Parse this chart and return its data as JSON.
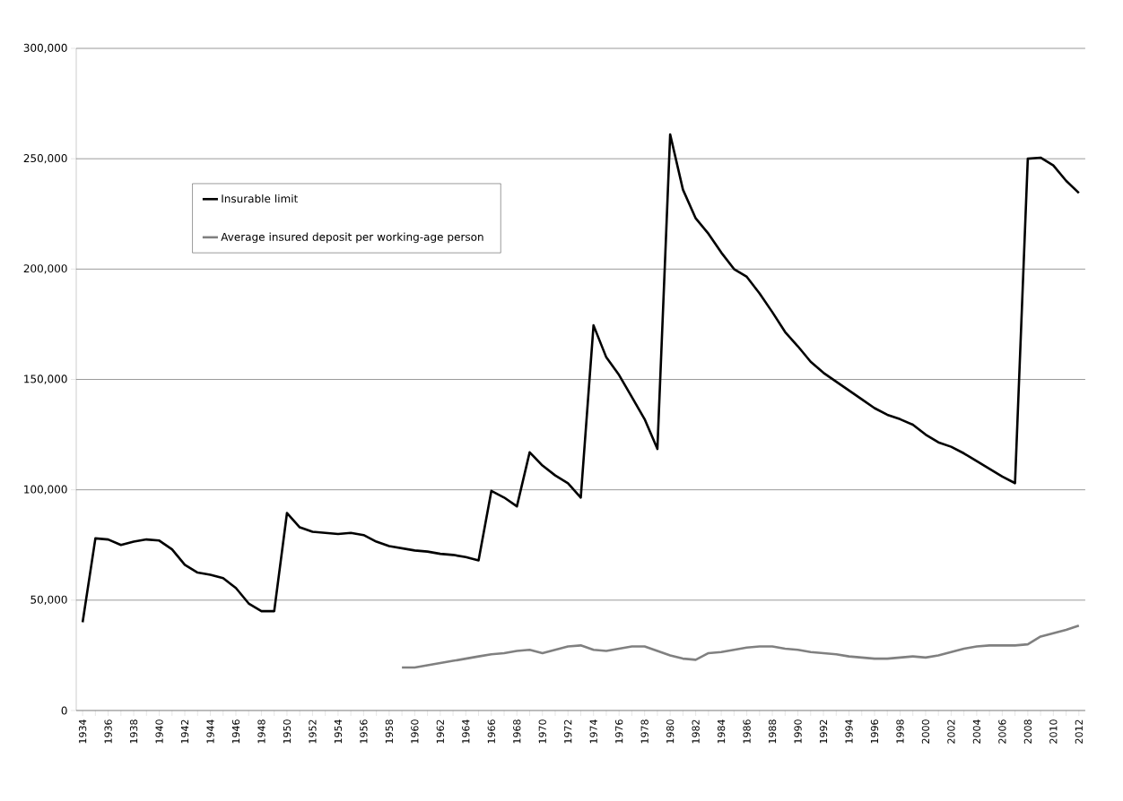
{
  "chart_data": {
    "type": "line",
    "categories": [
      "1934",
      null,
      "1936",
      null,
      "1938",
      null,
      "1940",
      null,
      "1942",
      null,
      "1944",
      null,
      "1946",
      null,
      "1948",
      null,
      "1950",
      null,
      "1952",
      null,
      "1954",
      null,
      "1956",
      null,
      "1958",
      null,
      "1960",
      null,
      "1962",
      null,
      "1964",
      null,
      "1966",
      null,
      "1968",
      null,
      "1970",
      null,
      "1972",
      null,
      "1974",
      null,
      "1976",
      null,
      "1978",
      null,
      "1980",
      null,
      "1982",
      null,
      "1984",
      null,
      "1986",
      null,
      "1988",
      null,
      "1990",
      null,
      "1992",
      null,
      "1994",
      null,
      "1996",
      null,
      "1998",
      null,
      "2000",
      null,
      "2002",
      null,
      "2004",
      null,
      "2006",
      null,
      "2008",
      null,
      "2010",
      null,
      "2012"
    ],
    "series": [
      {
        "name": "Insurable limit",
        "color": "#000000",
        "values": [
          40000,
          78000,
          77500,
          75000,
          76500,
          77500,
          77000,
          73000,
          66000,
          62500,
          61500,
          60000,
          55500,
          48500,
          45000,
          45000,
          89500,
          83000,
          81000,
          80500,
          80000,
          80500,
          79500,
          76500,
          74500,
          73500,
          72500,
          72000,
          71000,
          70500,
          69500,
          68000,
          99500,
          96500,
          92500,
          117000,
          111000,
          106500,
          103000,
          96500,
          174500,
          160000,
          152000,
          142000,
          132000,
          118500,
          261000,
          236000,
          223000,
          216000,
          207500,
          200000,
          196500,
          189000,
          180500,
          171500,
          165000,
          158000,
          153000,
          149000,
          145000,
          141000,
          137000,
          134000,
          132000,
          129500,
          125000,
          121500,
          119500,
          116500,
          113000,
          109500,
          106000,
          103000,
          250000,
          250500,
          247000,
          240000,
          234500
        ]
      },
      {
        "name": "Average insured deposit per working-age person",
        "color": "#808080",
        "values": [
          null,
          null,
          null,
          null,
          null,
          null,
          null,
          null,
          null,
          null,
          null,
          null,
          null,
          null,
          null,
          null,
          null,
          null,
          null,
          null,
          null,
          null,
          null,
          null,
          null,
          19500,
          19500,
          20500,
          21500,
          22500,
          23500,
          24500,
          25500,
          26000,
          27000,
          27500,
          26000,
          27500,
          29000,
          29500,
          27500,
          27000,
          28000,
          29000,
          29000,
          27000,
          25000,
          23500,
          23000,
          26000,
          26500,
          27500,
          28500,
          29000,
          29000,
          28000,
          27500,
          26500,
          26000,
          25500,
          24500,
          24000,
          23500,
          23500,
          24000,
          24500,
          24000,
          25000,
          26500,
          28000,
          29000,
          29500,
          29500,
          29500,
          30000,
          33500,
          35000,
          36500,
          38500
        ]
      }
    ],
    "ylim": [
      0,
      300000
    ],
    "yticks": [
      0,
      {
        "value": 50000,
        "label": "50,000"
      },
      {
        "value": 100000,
        "label": "100,000"
      },
      {
        "value": 150000,
        "label": "150,000"
      },
      {
        "value": 200000,
        "label": "200,000"
      },
      {
        "value": 250000,
        "label": "250,000"
      },
      {
        "value": 300000,
        "label": "300,000"
      }
    ],
    "grid": "y",
    "legend": "top left",
    "marker": "none",
    "line_style": "solid"
  }
}
